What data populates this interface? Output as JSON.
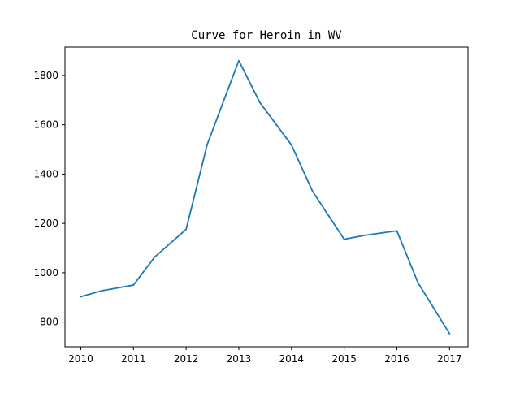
{
  "chart_data": {
    "type": "line",
    "title": "Curve for Heroin in WV",
    "xlabel": "",
    "ylabel": "",
    "xlim": [
      2009.7,
      2017.35
    ],
    "ylim": [
      700,
      1915
    ],
    "grid": false,
    "legend": "none",
    "x_ticks": [
      2010,
      2011,
      2012,
      2013,
      2014,
      2015,
      2016,
      2017
    ],
    "x_tick_labels": [
      "2010",
      "2011",
      "2012",
      "2013",
      "2014",
      "2015",
      "2016",
      "2017"
    ],
    "y_ticks": [
      800,
      1000,
      1200,
      1400,
      1600,
      1800
    ],
    "y_tick_labels": [
      "800",
      "1000",
      "1200",
      "1400",
      "1600",
      "1800"
    ],
    "series": [
      {
        "name": "Heroin",
        "color": "#1f77b4",
        "x": [
          2010.0,
          2010.4,
          2011.0,
          2011.4,
          2012.0,
          2012.4,
          2013.0,
          2013.4,
          2014.0,
          2014.4,
          2015.0,
          2015.4,
          2016.0,
          2016.4,
          2017.0
        ],
        "y": [
          903,
          927,
          950,
          1063,
          1176,
          1520,
          1860,
          1690,
          1518,
          1330,
          1136,
          1152,
          1170,
          960,
          753
        ]
      }
    ]
  }
}
